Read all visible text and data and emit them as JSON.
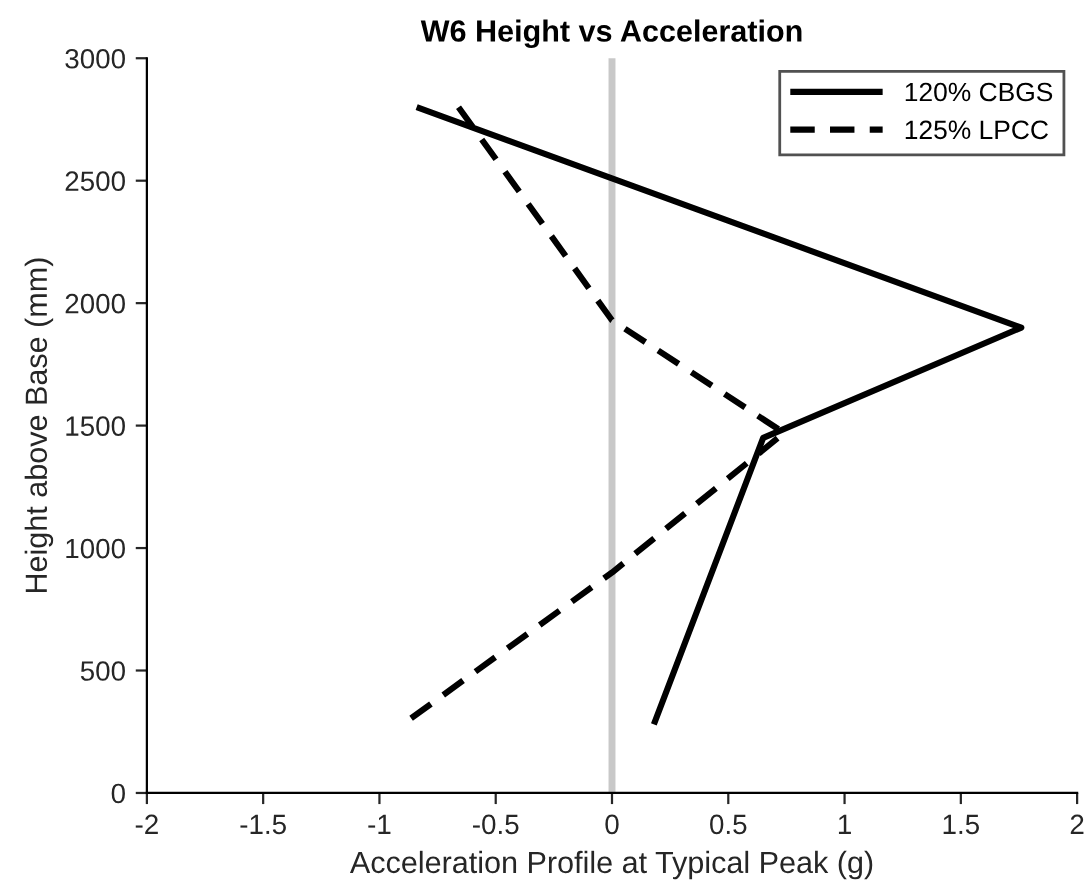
{
  "chart_data": {
    "type": "line",
    "title": "W6 Height vs Acceleration",
    "xlabel": "Acceleration Profile at Typical Peak (g)",
    "ylabel": "Height above Base (mm)",
    "series": [
      {
        "name": "120% CBGS",
        "color": "#000000",
        "line_style": "solid",
        "x": [
          -0.84,
          1.76,
          0.65,
          0.18
        ],
        "values": [
          2800,
          1900,
          1450,
          280
        ]
      },
      {
        "name": "125% LPCC",
        "color": "#000000",
        "line_style": "dashed",
        "x": [
          -0.66,
          0,
          0.74,
          0,
          -0.9
        ],
        "values": [
          2800,
          1930,
          1470,
          900,
          280
        ]
      }
    ],
    "ref_lines": [
      {
        "axis": "x",
        "value": 0,
        "color": "#c8c8c8"
      }
    ],
    "xlim": [
      -2,
      2
    ],
    "xticks": [
      -2,
      -1.5,
      -1,
      -0.5,
      0,
      0.5,
      1,
      1.5,
      2
    ],
    "ylim": [
      0,
      3000
    ],
    "yticks": [
      0,
      500,
      1000,
      1500,
      2000,
      2500,
      3000
    ],
    "grid": false,
    "legend": "top right",
    "marker": "none"
  }
}
